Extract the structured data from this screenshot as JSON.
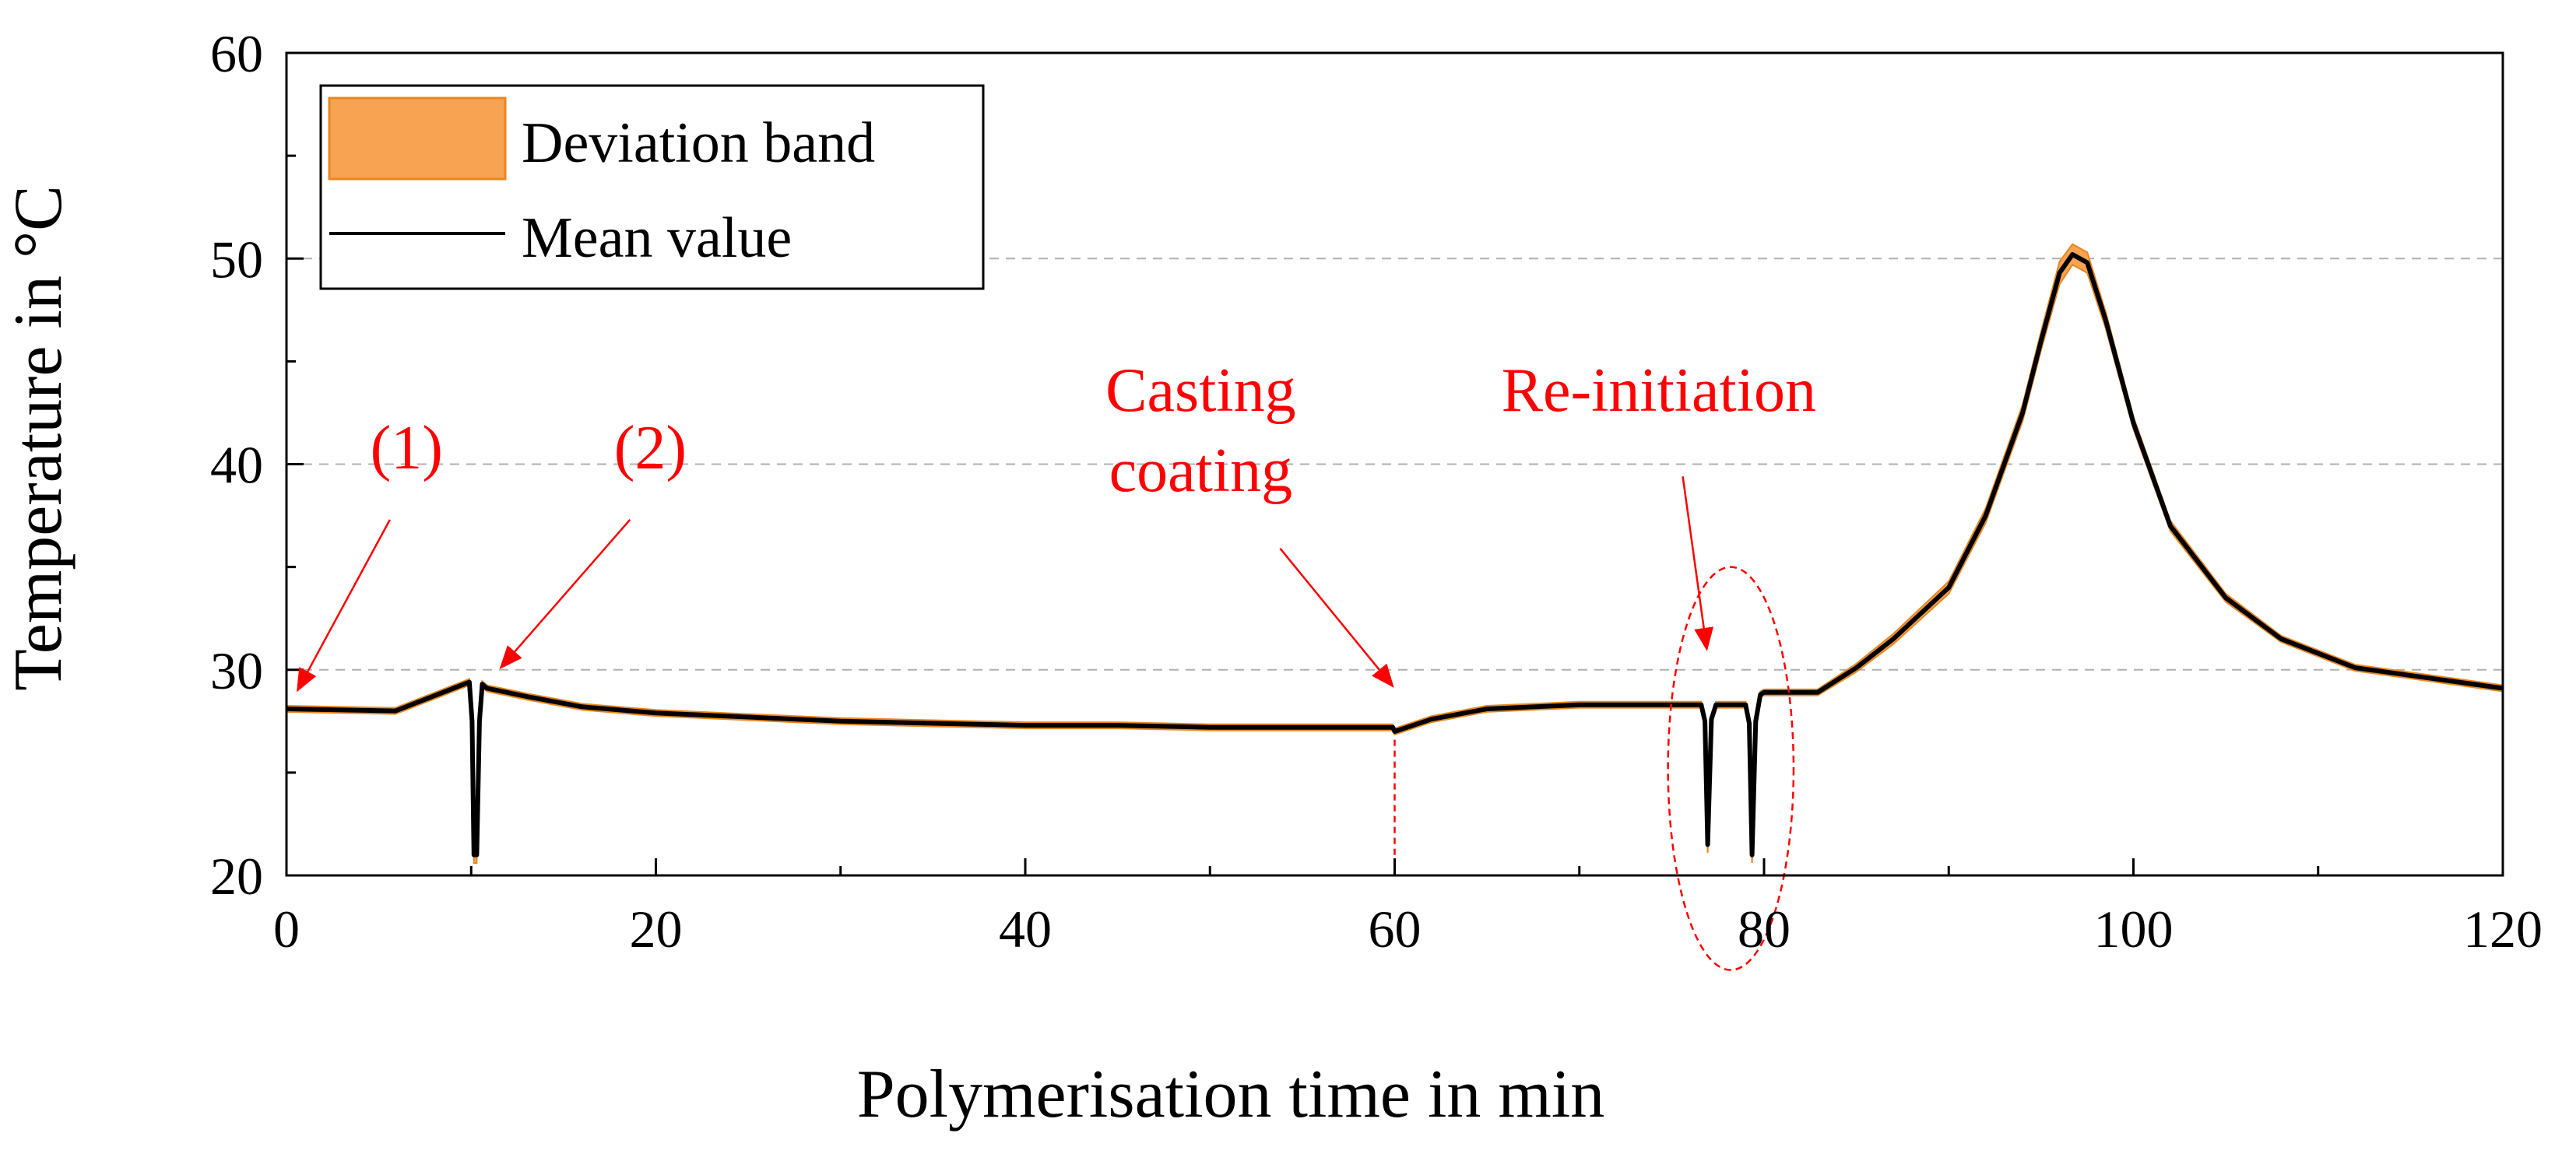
{
  "chart_data": {
    "type": "line",
    "title": "",
    "xlabel": "Polymerisation time in min",
    "ylabel": "Temperature in °C",
    "xlim": [
      0,
      120
    ],
    "ylim": [
      20,
      60
    ],
    "x_ticks": [
      "0",
      "20",
      "40",
      "60",
      "80",
      "100",
      "120"
    ],
    "y_ticks": [
      "20",
      "30",
      "40",
      "50",
      "60"
    ],
    "x_tick_values": [
      0,
      20,
      40,
      60,
      80,
      100,
      120
    ],
    "y_tick_values": [
      20,
      30,
      40,
      50,
      60
    ],
    "x_minor_tick_values": [
      10,
      30,
      50,
      70,
      90,
      110
    ],
    "y_minor_tick_values": [
      25,
      35,
      45,
      55
    ],
    "grid_y_values": [
      30,
      40,
      50
    ],
    "legend": {
      "position": "top-left",
      "band_label": "Deviation band",
      "mean_label": "Mean value"
    },
    "colors": {
      "mean": "#000000",
      "band": "#f7a352",
      "band_dark": "#e8871f",
      "annotation": "#ff0000",
      "grid": "#b0b0b0"
    },
    "series": [
      {
        "name": "Mean value",
        "x": [
          0,
          5.9,
          9.9,
          10.05,
          10.15,
          10.3,
          10.45,
          10.6,
          10.85,
          13,
          16,
          20,
          25,
          30,
          40,
          45,
          50,
          55,
          59.9,
          60,
          62,
          65,
          70,
          75,
          76.6,
          76.8,
          76.95,
          77.15,
          77.4,
          79,
          79.2,
          79.35,
          79.55,
          79.8,
          80,
          82.9,
          85,
          87,
          90,
          92,
          94,
          95,
          96,
          96.7,
          97.5,
          98.5,
          100,
          102,
          105,
          108,
          112,
          116,
          120
        ],
        "y": [
          28.1,
          28.0,
          29.4,
          27.5,
          21.0,
          21.0,
          27.5,
          29.3,
          29.1,
          28.7,
          28.2,
          27.9,
          27.7,
          27.5,
          27.3,
          27.3,
          27.2,
          27.2,
          27.2,
          27.0,
          27.6,
          28.1,
          28.3,
          28.3,
          28.3,
          27.5,
          21.5,
          27.6,
          28.3,
          28.3,
          27.4,
          21.0,
          27.5,
          28.8,
          28.9,
          28.9,
          30.1,
          31.5,
          34.0,
          37.5,
          42.5,
          46.0,
          49.3,
          50.2,
          49.8,
          47.0,
          42.0,
          37.0,
          33.5,
          31.5,
          30.1,
          29.6,
          29.1
        ]
      },
      {
        "name": "Deviation band",
        "x": [
          0,
          5.9,
          9.9,
          10.05,
          10.15,
          10.3,
          10.45,
          10.6,
          10.85,
          13,
          16,
          20,
          25,
          30,
          40,
          45,
          50,
          55,
          59.9,
          60,
          62,
          65,
          70,
          75,
          76.6,
          76.8,
          76.95,
          77.15,
          77.4,
          79,
          79.2,
          79.35,
          79.55,
          79.8,
          80,
          82.9,
          85,
          87,
          90,
          92,
          94,
          95,
          96,
          96.7,
          97.5,
          98.5,
          100,
          102,
          105,
          108,
          112,
          116,
          120
        ],
        "upper": [
          28.25,
          28.15,
          29.55,
          27.7,
          21.4,
          21.4,
          27.7,
          29.45,
          29.25,
          28.85,
          28.35,
          28.05,
          27.85,
          27.65,
          27.45,
          27.45,
          27.35,
          27.35,
          27.35,
          27.15,
          27.75,
          28.25,
          28.45,
          28.45,
          28.45,
          27.7,
          22.0,
          27.8,
          28.45,
          28.45,
          27.6,
          21.4,
          27.7,
          28.95,
          29.05,
          29.05,
          30.3,
          31.75,
          34.3,
          37.85,
          42.9,
          46.45,
          49.85,
          50.7,
          50.3,
          47.4,
          42.3,
          37.25,
          33.7,
          31.65,
          30.25,
          29.75,
          29.25
        ],
        "lower": [
          27.95,
          27.85,
          29.25,
          27.3,
          20.6,
          20.6,
          27.3,
          29.15,
          28.95,
          28.55,
          28.05,
          27.75,
          27.55,
          27.35,
          27.15,
          27.15,
          27.05,
          27.05,
          27.05,
          26.85,
          27.45,
          27.95,
          28.15,
          28.15,
          28.15,
          27.3,
          21.1,
          27.4,
          28.15,
          28.15,
          27.2,
          20.6,
          27.3,
          28.65,
          28.75,
          28.75,
          29.9,
          31.25,
          33.7,
          37.15,
          42.1,
          45.55,
          48.75,
          49.7,
          49.3,
          46.6,
          41.7,
          36.75,
          33.3,
          31.35,
          29.95,
          29.45,
          28.95
        ]
      }
    ],
    "annotations": [
      {
        "label": "(1)",
        "text_x": 6.5,
        "text_y": 39.8,
        "arrow_from": [
          5.6,
          37.3
        ],
        "arrow_to": [
          0.6,
          29.0
        ]
      },
      {
        "label": "(2)",
        "text_x": 19.7,
        "text_y": 39.8,
        "arrow_from": [
          18.6,
          37.3
        ],
        "arrow_to": [
          11.6,
          30.1
        ]
      },
      {
        "label": "Casting",
        "text_x": 49.5,
        "text_y": 42.6,
        "arrow_from": [
          53.8,
          35.9
        ],
        "arrow_to": [
          59.9,
          29.2
        ]
      },
      {
        "label": "coating",
        "text_x": 49.5,
        "text_y": 38.7,
        "arrow_from": null,
        "arrow_to": null
      },
      {
        "label": "Re-initiation",
        "text_x": 74.3,
        "text_y": 42.6,
        "arrow_from": [
          75.6,
          39.4
        ],
        "arrow_to": [
          76.9,
          31.0
        ]
      }
    ],
    "vertical_marker_x": 60,
    "ellipse_center": [
      78.2,
      25.2
    ],
    "ellipse_radius": [
      3.4,
      9.8
    ]
  }
}
